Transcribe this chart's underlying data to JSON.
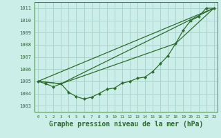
{
  "bg_color": "#cceee8",
  "grid_color": "#aad4ce",
  "line_color": "#2d6a2d",
  "marker_color": "#2d6a2d",
  "xlabel": "Graphe pression niveau de la mer (hPa)",
  "xlabel_fontsize": 7,
  "xlim": [
    -0.5,
    23.5
  ],
  "ylim": [
    1002.5,
    1011.5
  ],
  "yticks": [
    1003,
    1004,
    1005,
    1006,
    1007,
    1008,
    1009,
    1010,
    1011
  ],
  "xticks": [
    0,
    1,
    2,
    3,
    4,
    5,
    6,
    7,
    8,
    9,
    10,
    11,
    12,
    13,
    14,
    15,
    16,
    17,
    18,
    19,
    20,
    21,
    22,
    23
  ],
  "line1_x": [
    0,
    1,
    2,
    3,
    4,
    5,
    6,
    7,
    8,
    9,
    10,
    11,
    12,
    13,
    14,
    15,
    16,
    17,
    18,
    19,
    20,
    21,
    22,
    23
  ],
  "line1_y": [
    1005.0,
    1004.8,
    1004.55,
    1004.8,
    1004.1,
    1003.75,
    1003.55,
    1003.7,
    1004.0,
    1004.35,
    1004.45,
    1004.85,
    1005.0,
    1005.25,
    1005.35,
    1005.8,
    1006.45,
    1007.1,
    1008.1,
    1009.2,
    1010.0,
    1010.3,
    1011.0,
    1011.0
  ],
  "line2_x": [
    0,
    23
  ],
  "line2_y": [
    1005.0,
    1011.0
  ],
  "line3_x": [
    0,
    3,
    23
  ],
  "line3_y": [
    1005.0,
    1004.8,
    1011.0
  ],
  "line4_x": [
    0,
    3,
    18,
    23
  ],
  "line4_y": [
    1005.0,
    1004.8,
    1008.1,
    1011.0
  ]
}
